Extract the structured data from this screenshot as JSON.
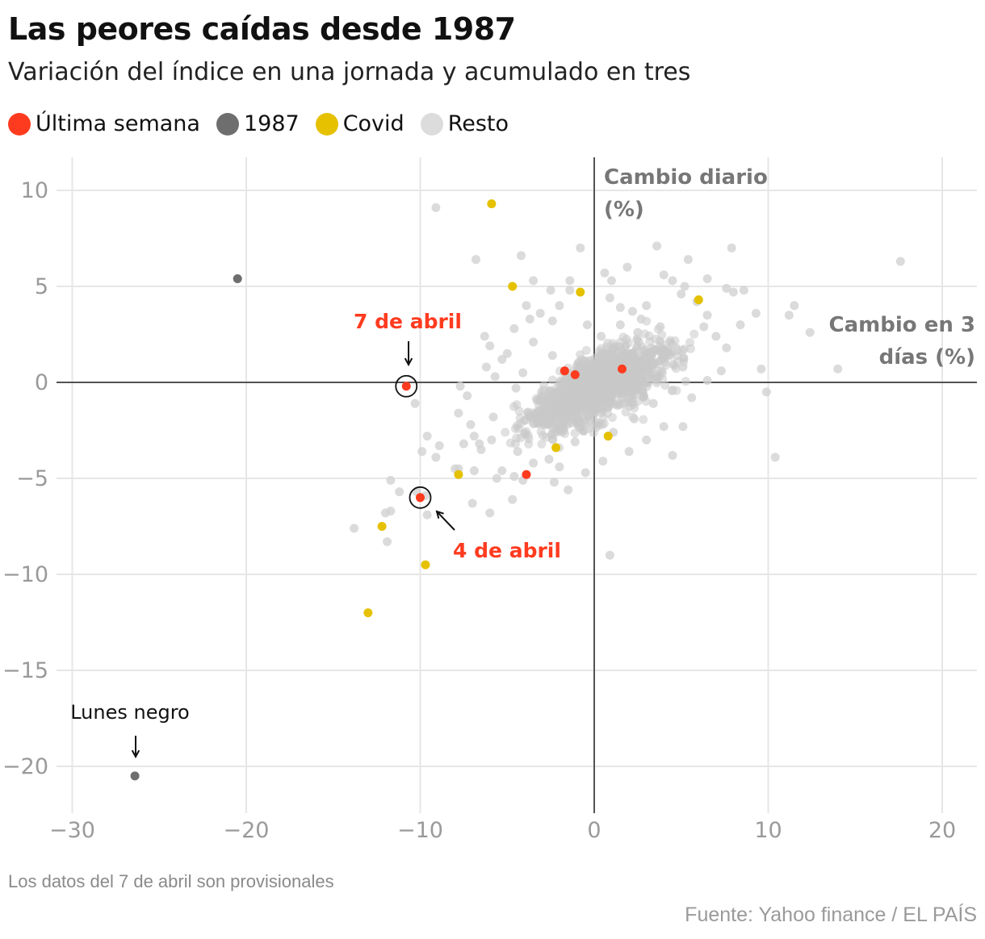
{
  "title": "Las peores caídas desde 1987",
  "subtitle": "Variación del índice en una jornada y acumulado en tres",
  "legend": [
    {
      "label": "Última semana",
      "color": "#ff3b1f"
    },
    {
      "label": "1987",
      "color": "#6e6e6e"
    },
    {
      "label": "Covid",
      "color": "#e5c100"
    },
    {
      "label": "Resto",
      "color": "#dcdcdc"
    }
  ],
  "note": "Los datos del 7 de abril son provisionales",
  "source": "Fuente: Yahoo finance / EL PAÍS",
  "chart_data": {
    "type": "scatter",
    "x_axis_label": [
      "Cambio en 3",
      "días (%)"
    ],
    "y_axis_label": [
      "Cambio diario",
      "(%)"
    ],
    "xlim": [
      -30,
      22
    ],
    "ylim": [
      -22,
      11.5
    ],
    "xticks": [
      -30,
      -20,
      -10,
      0,
      10,
      20
    ],
    "yticks": [
      -20,
      -15,
      -10,
      -5,
      0,
      5,
      10
    ],
    "xtick_labels": [
      "−30",
      "−20",
      "−10",
      "0",
      "10",
      "20"
    ],
    "ytick_labels": [
      "−20",
      "−15",
      "−10",
      "−5",
      "0",
      "5",
      "10"
    ],
    "grid": true,
    "series": [
      {
        "name": "Resto",
        "color": "#d2d2d2",
        "points": [
          [
            -9.1,
            9.1
          ],
          [
            -6.8,
            6.4
          ],
          [
            -4.2,
            6.6
          ],
          [
            -3.5,
            5.3
          ],
          [
            -2.5,
            4.8
          ],
          [
            -1.4,
            5.3
          ],
          [
            -1.4,
            4.8
          ],
          [
            -0.8,
            7.0
          ],
          [
            0.6,
            5.7
          ],
          [
            1.0,
            5.3
          ],
          [
            1.9,
            6.0
          ],
          [
            3.6,
            7.1
          ],
          [
            5.4,
            6.4
          ],
          [
            7.9,
            7.0
          ],
          [
            17.6,
            6.3
          ],
          [
            4.0,
            5.6
          ],
          [
            4.5,
            5.3
          ],
          [
            5.2,
            5.0
          ],
          [
            6.5,
            5.4
          ],
          [
            7.6,
            4.9
          ],
          [
            8.0,
            4.7
          ],
          [
            8.6,
            4.8
          ],
          [
            11.5,
            4.0
          ],
          [
            11.2,
            3.5
          ],
          [
            12.4,
            2.6
          ],
          [
            14.0,
            0.7
          ],
          [
            9.3,
            3.6
          ],
          [
            8.4,
            3.0
          ],
          [
            9.6,
            0.7
          ],
          [
            9.9,
            -0.5
          ],
          [
            10.4,
            -3.9
          ],
          [
            4.5,
            -3.8
          ],
          [
            5.1,
            -2.3
          ],
          [
            -9.6,
            -2.8
          ],
          [
            -9.9,
            -3.6
          ],
          [
            -8.9,
            -3.3
          ],
          [
            -9.1,
            -3.9
          ],
          [
            -8.0,
            -4.5
          ],
          [
            -10.3,
            -1.1
          ],
          [
            -11.7,
            -5.1
          ],
          [
            -11.2,
            -5.7
          ],
          [
            -11.7,
            -6.7
          ],
          [
            -12.0,
            -6.8
          ],
          [
            -13.8,
            -7.6
          ],
          [
            -11.9,
            -8.3
          ],
          [
            -9.6,
            -6.9
          ],
          [
            -7.0,
            -6.3
          ],
          [
            -4.6,
            -4.9
          ],
          [
            -4.1,
            -5.1
          ],
          [
            -2.0,
            -4.4
          ],
          [
            -2.3,
            -5.2
          ],
          [
            -4.7,
            -6.1
          ],
          [
            -6.0,
            -6.8
          ],
          [
            -7.8,
            -4.5
          ],
          [
            -6.9,
            -4.6
          ],
          [
            -5.6,
            -5.0
          ],
          [
            -10.2,
            -5.7
          ],
          [
            -9.7,
            -5.9
          ],
          [
            -7.5,
            -3.2
          ],
          [
            -6.5,
            -3.5
          ],
          [
            -6.9,
            -2.8
          ],
          [
            -5.9,
            -3.0
          ],
          [
            -5.3,
            -4.6
          ],
          [
            -3.5,
            2.1
          ],
          [
            -5.3,
            1.2
          ],
          [
            -6.0,
            1.9
          ],
          [
            -5.7,
            0.3
          ],
          [
            -7.7,
            -0.2
          ],
          [
            -7.3,
            -0.7
          ],
          [
            -7.8,
            -1.6
          ],
          [
            -7.1,
            -2.2
          ],
          [
            -6.3,
            2.4
          ],
          [
            -2.4,
            1.4
          ],
          [
            -4.1,
            0.5
          ],
          [
            -3.1,
            3.6
          ],
          [
            -2.4,
            3.2
          ],
          [
            0.9,
            4.4
          ],
          [
            1.5,
            3.9
          ],
          [
            2.2,
            3.7
          ],
          [
            3.0,
            4.0
          ],
          [
            5.0,
            4.6
          ],
          [
            5.9,
            4.2
          ],
          [
            6.5,
            3.5
          ],
          [
            6.3,
            2.9
          ],
          [
            7.0,
            2.4
          ],
          [
            7.6,
            1.8
          ],
          [
            7.3,
            0.6
          ],
          [
            6.5,
            0.1
          ],
          [
            5.6,
            -0.8
          ],
          [
            4.0,
            -2.3
          ],
          [
            3.0,
            -3.0
          ],
          [
            2.0,
            -3.6
          ],
          [
            0.5,
            -4.1
          ],
          [
            -0.5,
            -4.7
          ],
          [
            -1.5,
            -5.6
          ],
          [
            0.9,
            -9.0
          ],
          [
            -3.9,
            4.0
          ],
          [
            -2.0,
            4.0
          ],
          [
            -0.4,
            3.0
          ],
          [
            2.5,
            2.6
          ],
          [
            -3.7,
            3.3
          ],
          [
            -4.6,
            2.8
          ],
          [
            -5.0,
            1.5
          ],
          [
            -6.2,
            0.8
          ],
          [
            -4.5,
            -0.3
          ],
          [
            -5.8,
            -1.8
          ],
          [
            -6.6,
            -3.2
          ],
          [
            -4.4,
            -3.6
          ],
          [
            -3.5,
            -4.2
          ],
          [
            -2.6,
            -4.0
          ],
          [
            -1.1,
            -3.1
          ],
          [
            -0.3,
            -2.4
          ],
          [
            1.1,
            -2.6
          ],
          [
            2.3,
            -1.9
          ],
          [
            3.4,
            -1.1
          ],
          [
            4.5,
            -0.4
          ],
          [
            5.1,
            0.8
          ],
          [
            4.7,
            1.8
          ],
          [
            3.8,
            2.9
          ],
          [
            2.7,
            3.3
          ],
          [
            1.5,
            3.0
          ],
          [
            0.4,
            2.4
          ]
        ]
      },
      {
        "name": "1987",
        "color": "#6e6e6e",
        "points": [
          [
            -20.5,
            5.4
          ],
          [
            -26.4,
            -20.5
          ]
        ]
      },
      {
        "name": "Covid",
        "color": "#e5c100",
        "points": [
          [
            -5.9,
            9.3
          ],
          [
            -4.7,
            5.0
          ],
          [
            -0.8,
            4.7
          ],
          [
            6.0,
            4.3
          ],
          [
            -7.8,
            -4.8
          ],
          [
            -12.2,
            -7.5
          ],
          [
            -9.7,
            -9.5
          ],
          [
            -13.0,
            -12.0
          ],
          [
            0.8,
            -2.8
          ],
          [
            -2.2,
            -3.4
          ]
        ]
      },
      {
        "name": "Última semana",
        "color": "#ff3b1f",
        "points": [
          [
            -1.7,
            0.6
          ],
          [
            -1.1,
            0.4
          ],
          [
            1.6,
            0.7
          ],
          [
            -3.9,
            -4.8
          ],
          [
            -10.8,
            -0.2
          ],
          [
            -10.0,
            -6.0
          ]
        ]
      }
    ],
    "annotations": [
      {
        "text": "7 de abril",
        "x": -10.8,
        "y": -0.2,
        "color": "#ff3b1f"
      },
      {
        "text": "4 de abril",
        "x": -10.0,
        "y": -6.0,
        "color": "#ff3b1f"
      },
      {
        "text": "Lunes negro",
        "x": -26.4,
        "y": -20.5,
        "color": "#111111"
      }
    ]
  }
}
